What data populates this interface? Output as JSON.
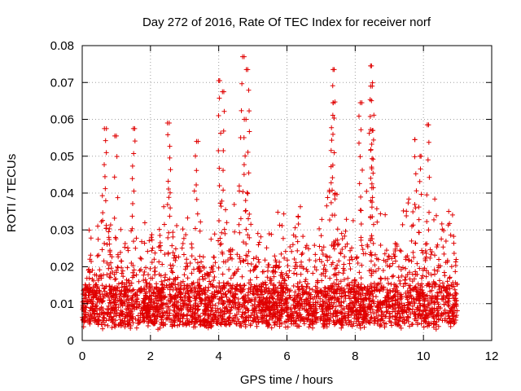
{
  "chart_data": {
    "type": "scatter",
    "title": "Day 272 of 2016, Rate Of TEC Index for receiver norf",
    "xlabel": "GPS time / hours",
    "ylabel": "ROTI / TECUs",
    "xlim": [
      0,
      12
    ],
    "ylim": [
      0,
      0.08
    ],
    "xticks": [
      0,
      2,
      4,
      6,
      8,
      10,
      12
    ],
    "yticks": [
      0,
      0.01,
      0.02,
      0.03,
      0.04,
      0.05,
      0.06,
      0.07,
      0.08
    ],
    "xtick_labels": [
      "0",
      "2",
      "4",
      "6",
      "8",
      "10",
      "12"
    ],
    "ytick_labels": [
      "0",
      "0.01",
      "0.02",
      "0.03",
      "0.04",
      "0.05",
      "0.06",
      "0.07",
      "0.08"
    ],
    "grid": true,
    "marker": "+",
    "color": "#ff0000",
    "x_data_range": [
      0,
      11.0
    ],
    "typical_baseline_range": [
      0.004,
      0.015
    ],
    "notable_peaks": [
      {
        "x": 0.65,
        "y": 0.0575
      },
      {
        "x": 1.5,
        "y": 0.0575
      },
      {
        "x": 2.55,
        "y": 0.059
      },
      {
        "x": 3.35,
        "y": 0.054
      },
      {
        "x": 4.0,
        "y": 0.0705
      },
      {
        "x": 4.15,
        "y": 0.0675
      },
      {
        "x": 4.7,
        "y": 0.077
      },
      {
        "x": 4.85,
        "y": 0.0735
      },
      {
        "x": 4.8,
        "y": 0.06
      },
      {
        "x": 7.35,
        "y": 0.0735
      },
      {
        "x": 7.35,
        "y": 0.0645
      },
      {
        "x": 8.15,
        "y": 0.0645
      },
      {
        "x": 8.45,
        "y": 0.0745
      },
      {
        "x": 8.5,
        "y": 0.069
      },
      {
        "x": 8.5,
        "y": 0.057
      },
      {
        "x": 10.15,
        "y": 0.0585
      },
      {
        "x": 9.75,
        "y": 0.0545
      },
      {
        "x": 9.9,
        "y": 0.05
      },
      {
        "x": 1.0,
        "y": 0.0555
      }
    ]
  }
}
